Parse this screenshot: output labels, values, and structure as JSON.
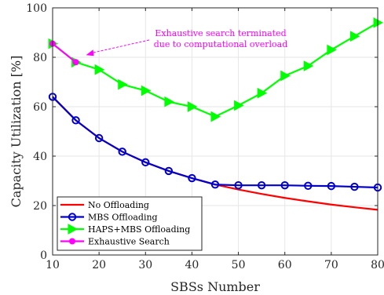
{
  "chart_data": {
    "type": "line",
    "title": "",
    "xlabel": "SBSs Number",
    "ylabel": "Capacity Utilization [%]",
    "xlim": [
      10,
      80
    ],
    "ylim": [
      0,
      100
    ],
    "xticks": [
      10,
      20,
      30,
      40,
      50,
      60,
      70,
      80
    ],
    "yticks": [
      0,
      20,
      40,
      60,
      80,
      100
    ],
    "grid": true,
    "legend_position": "bottom-left",
    "series": [
      {
        "name": "No Offloading",
        "color": "#ff0000",
        "marker": "none",
        "x": [
          10,
          15,
          20,
          25,
          30,
          35,
          40,
          45,
          50,
          55,
          60,
          65,
          70,
          75,
          80
        ],
        "y": [
          64,
          54.5,
          47.3,
          41.8,
          37.5,
          34,
          31.1,
          28.5,
          26.5,
          24.7,
          23.1,
          21.7,
          20.4,
          19.3,
          18.3
        ]
      },
      {
        "name": "MBS Offloading",
        "color": "#0000cc",
        "marker": "circle",
        "x": [
          10,
          15,
          20,
          25,
          30,
          35,
          40,
          45,
          50,
          55,
          60,
          65,
          70,
          75,
          80
        ],
        "y": [
          64,
          54.5,
          47.3,
          41.8,
          37.5,
          34,
          31.1,
          28.5,
          28.2,
          28.2,
          28.2,
          28.0,
          27.9,
          27.6,
          27.3
        ]
      },
      {
        "name": "HAPS+MBS Offloading",
        "color": "#00ff00",
        "marker": "triangle-right",
        "x": [
          10,
          15,
          20,
          25,
          30,
          35,
          40,
          45,
          50,
          55,
          60,
          65,
          70,
          75,
          80
        ],
        "y": [
          85.5,
          78,
          75,
          69,
          66.5,
          62,
          60,
          56,
          60.5,
          65.5,
          72.5,
          76.5,
          83,
          88.5,
          94
        ]
      },
      {
        "name": "Exhaustive Search",
        "color": "#ff00ff",
        "marker": "circle-filled",
        "x": [
          10,
          15
        ],
        "y": [
          85.5,
          78
        ]
      }
    ],
    "annotations": [
      {
        "text_lines": [
          "Exhaustive search terminated",
          "due to computational overload"
        ],
        "color": "#ff00ff",
        "arrow_to": [
          15,
          78
        ]
      }
    ]
  }
}
